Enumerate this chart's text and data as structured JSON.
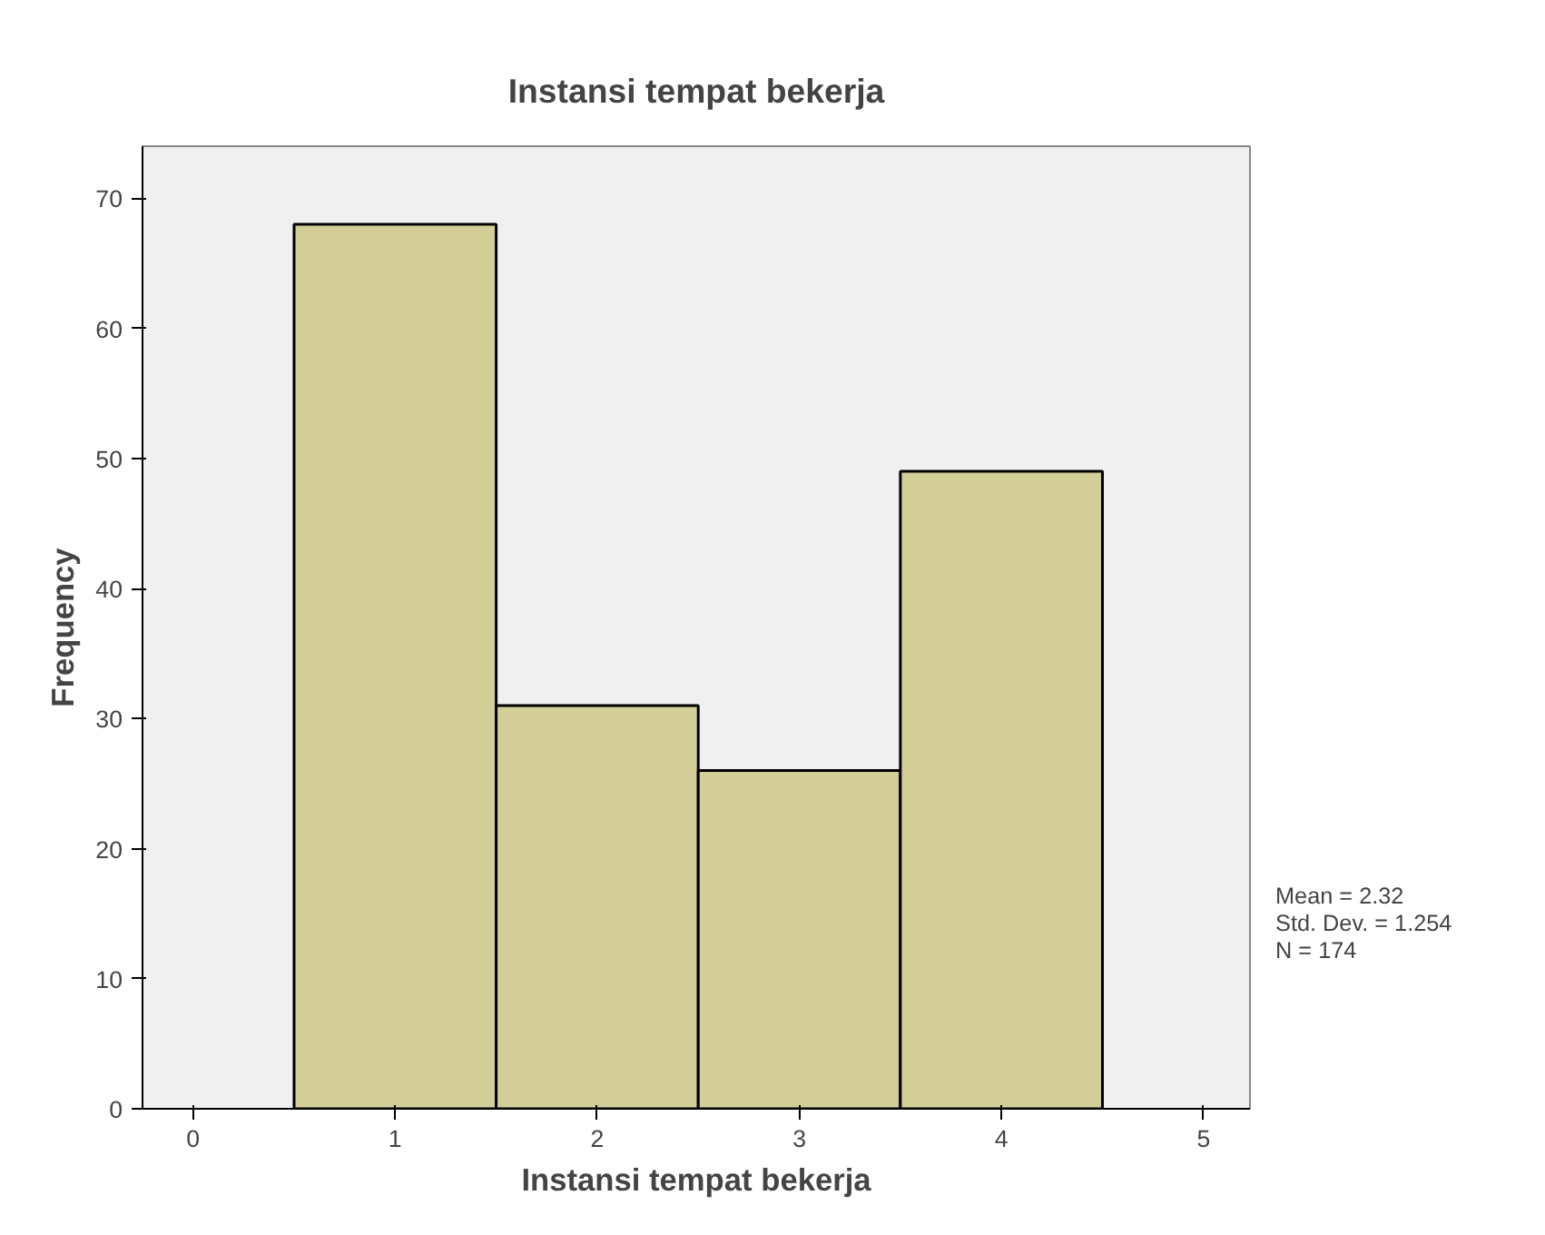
{
  "chart_data": {
    "type": "histogram",
    "title": "Instansi tempat bekerja",
    "xlabel": "Instansi tempat bekerja",
    "ylabel": "Frequency",
    "bins": [
      0.5,
      1.5,
      2.5,
      3.5,
      4.5
    ],
    "values": [
      68,
      31,
      26,
      49
    ],
    "color": "#d3ce98",
    "xlim": [
      -0.25,
      5.23
    ],
    "xticks": [
      0,
      1,
      2,
      3,
      4,
      5
    ],
    "ylim": [
      0,
      74
    ],
    "yticks": [
      0,
      10,
      20,
      30,
      40,
      50,
      60,
      70
    ],
    "grid": false,
    "annotations": [
      "Mean = 2.32",
      "Std. Dev. = 1.254",
      "N = 174"
    ]
  }
}
